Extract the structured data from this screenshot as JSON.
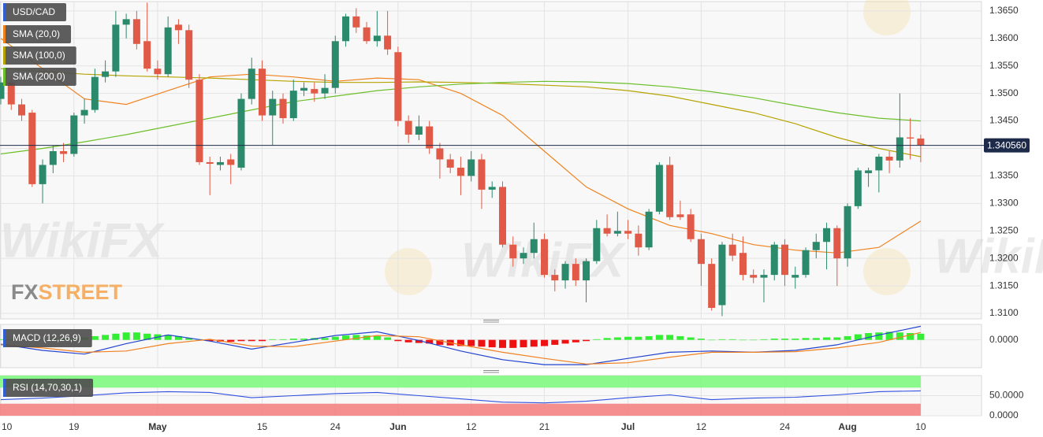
{
  "chart_data": [
    {
      "type": "candlestick",
      "name": "USD/CAD",
      "categories": [
        "10",
        null,
        null,
        null,
        null,
        null,
        null,
        "19",
        null,
        null,
        null,
        null,
        null,
        null,
        null,
        "May",
        null,
        null,
        null,
        null,
        null,
        null,
        null,
        null,
        null,
        "15",
        null,
        null,
        null,
        null,
        null,
        null,
        "24",
        null,
        null,
        null,
        null,
        null,
        "Jun",
        null,
        null,
        null,
        null,
        null,
        null,
        "12",
        null,
        null,
        null,
        null,
        null,
        null,
        "21",
        null,
        null,
        null,
        null,
        null,
        null,
        null,
        "Jul",
        null,
        null,
        null,
        null,
        null,
        null,
        "12",
        null,
        null,
        null,
        null,
        null,
        null,
        null,
        "24",
        null,
        null,
        null,
        null,
        null,
        "Aug",
        null,
        null,
        null,
        null,
        null,
        null,
        "10"
      ],
      "open": [
        1.349,
        1.352,
        1.348,
        1.3465,
        1.3335,
        1.337,
        1.3395,
        1.339,
        1.346,
        1.347,
        1.353,
        1.354,
        1.3625,
        1.3635,
        1.3595,
        1.3545,
        1.3535,
        1.3625,
        1.3615,
        1.3525,
        1.3375,
        1.337,
        1.338,
        1.3365,
        1.349,
        1.3545,
        1.346,
        1.349,
        1.3455,
        1.3505,
        1.3508,
        1.35,
        1.351,
        1.3595,
        1.364,
        1.362,
        1.3595,
        1.3605,
        1.3575,
        1.345,
        1.3425,
        1.344,
        1.34,
        1.338,
        1.3365,
        1.335,
        1.338,
        1.3325,
        1.333,
        1.3225,
        1.32,
        1.321,
        1.3235,
        1.317,
        1.316,
        1.319,
        1.316,
        1.3195,
        1.3255,
        1.3245,
        1.325,
        1.3245,
        1.322,
        1.3285,
        1.337,
        1.328,
        1.328,
        1.3235,
        1.319,
        1.3115,
        1.3225,
        1.321,
        1.317,
        1.3165,
        1.317,
        1.3225,
        1.3165,
        1.317,
        1.3215,
        1.323,
        1.3255,
        1.32,
        1.3295,
        1.3355,
        1.336,
        1.3385,
        1.3378,
        1.342,
        1.3418
      ],
      "high": [
        1.353,
        1.353,
        1.349,
        1.347,
        1.338,
        1.3405,
        1.341,
        1.3465,
        1.349,
        1.3545,
        1.356,
        1.365,
        1.3645,
        1.365,
        1.3665,
        1.356,
        1.364,
        1.3635,
        1.3625,
        1.3535,
        1.3385,
        1.3385,
        1.339,
        1.35,
        1.3565,
        1.356,
        1.3505,
        1.35,
        1.3525,
        1.352,
        1.352,
        1.3535,
        1.3605,
        1.3645,
        1.3655,
        1.363,
        1.365,
        1.365,
        1.3585,
        1.346,
        1.346,
        1.345,
        1.341,
        1.339,
        1.3385,
        1.3395,
        1.339,
        1.334,
        1.334,
        1.324,
        1.322,
        1.3265,
        1.3245,
        1.318,
        1.3195,
        1.32,
        1.32,
        1.327,
        1.328,
        1.3285,
        1.327,
        1.326,
        1.329,
        1.3375,
        1.3385,
        1.3305,
        1.329,
        1.3245,
        1.32,
        1.323,
        1.3245,
        1.324,
        1.318,
        1.318,
        1.323,
        1.3235,
        1.3185,
        1.322,
        1.3245,
        1.3265,
        1.326,
        1.33,
        1.3365,
        1.3365,
        1.339,
        1.3395,
        1.35,
        1.3455,
        1.3425
      ],
      "low": [
        1.348,
        1.347,
        1.345,
        1.333,
        1.33,
        1.3355,
        1.3375,
        1.3385,
        1.3445,
        1.3465,
        1.352,
        1.353,
        1.36,
        1.358,
        1.354,
        1.3525,
        1.353,
        1.359,
        1.351,
        1.337,
        1.3315,
        1.336,
        1.3335,
        1.336,
        1.348,
        1.345,
        1.3405,
        1.3445,
        1.345,
        1.3495,
        1.3485,
        1.349,
        1.35,
        1.3585,
        1.361,
        1.359,
        1.3585,
        1.357,
        1.344,
        1.341,
        1.3415,
        1.339,
        1.3345,
        1.3355,
        1.3315,
        1.334,
        1.329,
        1.331,
        1.322,
        1.3185,
        1.319,
        1.32,
        1.3165,
        1.314,
        1.3145,
        1.315,
        1.312,
        1.319,
        1.324,
        1.324,
        1.3235,
        1.3205,
        1.3215,
        1.328,
        1.327,
        1.327,
        1.323,
        1.315,
        1.3105,
        1.3095,
        1.3195,
        1.316,
        1.3155,
        1.312,
        1.316,
        1.315,
        1.3145,
        1.3165,
        1.32,
        1.318,
        1.315,
        1.3185,
        1.329,
        1.333,
        1.332,
        1.3355,
        1.3365,
        1.338,
        1.3375
      ],
      "close": [
        1.352,
        1.348,
        1.346,
        1.3335,
        1.337,
        1.3395,
        1.339,
        1.346,
        1.347,
        1.353,
        1.354,
        1.3625,
        1.3635,
        1.359,
        1.3545,
        1.3535,
        1.362,
        1.3615,
        1.3525,
        1.3375,
        1.3372,
        1.3375,
        1.337,
        1.349,
        1.3545,
        1.346,
        1.349,
        1.3455,
        1.3505,
        1.351,
        1.35,
        1.351,
        1.3595,
        1.364,
        1.362,
        1.3595,
        1.3605,
        1.358,
        1.345,
        1.3425,
        1.344,
        1.34,
        1.338,
        1.3365,
        1.335,
        1.338,
        1.3325,
        1.333,
        1.3225,
        1.32,
        1.321,
        1.3235,
        1.317,
        1.316,
        1.319,
        1.316,
        1.3195,
        1.3255,
        1.3245,
        1.325,
        1.3245,
        1.322,
        1.3285,
        1.337,
        1.3275,
        1.3275,
        1.3235,
        1.319,
        1.311,
        1.3225,
        1.3205,
        1.317,
        1.3165,
        1.317,
        1.3225,
        1.317,
        1.317,
        1.3215,
        1.323,
        1.3255,
        1.32,
        1.3295,
        1.336,
        1.336,
        1.3385,
        1.3378,
        1.342,
        1.3418,
        1.3406
      ],
      "up_color": "#2b8a6c",
      "down_color": "#e05a47",
      "ylim": [
        1.309,
        1.3667
      ],
      "yticks": [
        {
          "value": 1.31,
          "label": "1.3100"
        },
        {
          "value": 1.315,
          "label": "1.3150"
        },
        {
          "value": 1.32,
          "label": "1.3200"
        },
        {
          "value": 1.325,
          "label": "1.3250"
        },
        {
          "value": 1.33,
          "label": "1.3300"
        },
        {
          "value": 1.335,
          "label": "1.3350"
        },
        {
          "value": 1.34,
          "label": "1.3400"
        },
        {
          "value": 1.345,
          "label": "1.3450"
        },
        {
          "value": 1.35,
          "label": "1.3500"
        },
        {
          "value": 1.355,
          "label": "1.3550"
        },
        {
          "value": 1.36,
          "label": "1.3600"
        },
        {
          "value": 1.365,
          "label": "1.3650"
        }
      ],
      "grid": true,
      "last_price": {
        "value": 1.34056,
        "label": "1.340560"
      },
      "series": [
        {
          "name": "SMA (20,0)",
          "color": "#f0821e",
          "x": [
            0,
            4,
            8,
            12,
            16,
            20,
            24,
            28,
            32,
            36,
            40,
            44,
            48,
            52,
            56,
            60,
            64,
            68,
            72,
            76,
            80,
            84,
            88
          ],
          "values": [
            1.36,
            1.3545,
            1.349,
            1.348,
            1.3505,
            1.353,
            1.3535,
            1.353,
            1.3522,
            1.3528,
            1.3525,
            1.35,
            1.346,
            1.3395,
            1.333,
            1.329,
            1.326,
            1.3245,
            1.3225,
            1.3215,
            1.321,
            1.322,
            1.3268
          ]
        },
        {
          "name": "SMA (100,0)",
          "color": "#b5a300",
          "x": [
            0,
            4,
            8,
            12,
            16,
            20,
            24,
            28,
            32,
            36,
            40,
            44,
            48,
            52,
            56,
            60,
            64,
            68,
            72,
            76,
            80,
            84,
            88
          ],
          "values": [
            1.3545,
            1.354,
            1.3535,
            1.3532,
            1.353,
            1.3528,
            1.3525,
            1.3522,
            1.352,
            1.352,
            1.3521,
            1.352,
            1.3518,
            1.3515,
            1.3512,
            1.3505,
            1.3495,
            1.348,
            1.3465,
            1.3445,
            1.342,
            1.34,
            1.3385
          ]
        },
        {
          "name": "SMA (200,0)",
          "color": "#6cbf2a",
          "x": [
            0,
            4,
            8,
            12,
            16,
            20,
            24,
            28,
            32,
            36,
            40,
            44,
            48,
            52,
            56,
            60,
            64,
            68,
            72,
            76,
            80,
            84,
            88
          ],
          "values": [
            1.339,
            1.34,
            1.3412,
            1.3425,
            1.344,
            1.3455,
            1.347,
            1.3485,
            1.3495,
            1.3505,
            1.3512,
            1.3517,
            1.352,
            1.3522,
            1.3521,
            1.3518,
            1.3512,
            1.3503,
            1.3492,
            1.3478,
            1.3465,
            1.3455,
            1.345
          ]
        }
      ]
    },
    {
      "type": "macd",
      "name": "MACD (12,26,9)",
      "histogram": [
        0.0001,
        0.0001,
        0.0,
        0.0,
        0.0001,
        0.0002,
        0.0002,
        0.0003,
        0.0004,
        0.0006,
        0.0008,
        0.001,
        0.0012,
        0.0012,
        0.001,
        0.0009,
        0.0008,
        0.0006,
        0.0003,
        0.0001,
        -0.0002,
        -0.0003,
        -0.0003,
        -0.0002,
        -0.0002,
        -0.0002,
        0.0001,
        0.0001,
        0.0002,
        0.0002,
        0.0003,
        0.0003,
        0.0005,
        0.0007,
        0.0008,
        0.0007,
        0.0006,
        0.0004,
        -0.0002,
        -0.0004,
        -0.0005,
        -0.0006,
        -0.0008,
        -0.0009,
        -0.001,
        -0.001,
        -0.0011,
        -0.0012,
        -0.0013,
        -0.0013,
        -0.0012,
        -0.0011,
        -0.001,
        -0.0008,
        -0.0006,
        -0.0004,
        -0.0002,
        0.0001,
        0.0003,
        0.0004,
        0.0005,
        0.0005,
        0.0006,
        0.0008,
        0.0008,
        0.0006,
        0.0004,
        0.0002,
        0.0,
        0.0001,
        0.0001,
        0.0,
        0.0,
        0.0001,
        0.0002,
        0.0002,
        0.0002,
        0.0003,
        0.0003,
        0.0004,
        0.0004,
        0.0006,
        0.0009,
        0.0011,
        0.0012,
        0.0013,
        0.0012,
        0.0011,
        0.001
      ],
      "pos_color": "#33ee33",
      "neg_color": "#ee1111",
      "series": [
        {
          "color": "#2343d0",
          "x": [
            0,
            4,
            8,
            12,
            16,
            20,
            24,
            28,
            32,
            36,
            40,
            44,
            48,
            52,
            56,
            60,
            64,
            68,
            72,
            76,
            80,
            84,
            88
          ],
          "values": [
            -0.0007,
            -0.0017,
            -0.0023,
            -0.0006,
            0.0008,
            -0.0002,
            -0.0015,
            -0.0004,
            0.0007,
            0.0013,
            -0.0001,
            -0.0018,
            -0.0032,
            -0.004,
            -0.004,
            -0.003,
            -0.002,
            -0.0018,
            -0.002,
            -0.0017,
            -0.0008,
            0.0008,
            0.0022
          ]
        },
        {
          "color": "#f08020",
          "x": [
            0,
            4,
            8,
            12,
            16,
            20,
            24,
            28,
            32,
            36,
            40,
            44,
            48,
            52,
            56,
            60,
            64,
            68,
            72,
            76,
            80,
            84,
            88
          ],
          "values": [
            -0.0008,
            -0.0013,
            -0.002,
            -0.0018,
            -0.0006,
            0.0001,
            -0.001,
            -0.0011,
            -0.0002,
            0.0007,
            0.0005,
            -0.0008,
            -0.002,
            -0.003,
            -0.0039,
            -0.0037,
            -0.0028,
            -0.002,
            -0.002,
            -0.0019,
            -0.0013,
            -0.0004,
            0.0012
          ]
        }
      ],
      "ylim": [
        -0.0045,
        0.0025
      ],
      "yticks": [
        {
          "value": 0,
          "label": "0.0000"
        }
      ]
    },
    {
      "type": "rsi",
      "name": "RSI (14,70,30,1)",
      "bands": [
        {
          "from": 70,
          "to": 100,
          "color": "#80f880"
        },
        {
          "from": 0,
          "to": 30,
          "color": "#f48282"
        }
      ],
      "series": [
        {
          "color": "#3050e0",
          "x": [
            0,
            4,
            8,
            12,
            16,
            20,
            24,
            28,
            32,
            36,
            40,
            44,
            48,
            52,
            56,
            60,
            64,
            68,
            72,
            76,
            80,
            84,
            88
          ],
          "values": [
            40,
            44,
            50,
            57,
            60,
            58,
            45,
            50,
            55,
            58,
            50,
            42,
            34,
            32,
            36,
            45,
            52,
            40,
            44,
            46,
            52,
            60,
            62
          ]
        }
      ],
      "ylim": [
        0,
        100
      ],
      "yticks": [
        {
          "value": 50,
          "label": "50.0000"
        },
        {
          "value": 0,
          "label": "0.0000"
        }
      ]
    }
  ],
  "watermark": "WikiFX",
  "logo": [
    "FX",
    "STREET"
  ]
}
